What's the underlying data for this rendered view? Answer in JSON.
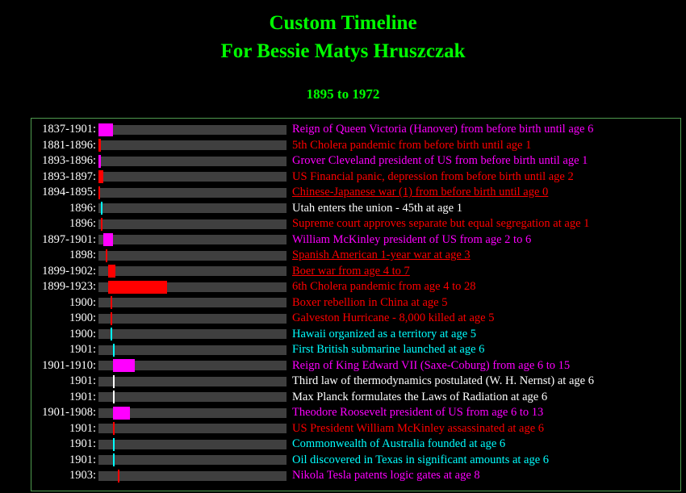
{
  "colors": {
    "background": "#000000",
    "title": "#00ff00",
    "year_label": "#ffffff",
    "track": "#3f3f3f",
    "table_border": "#4f9b4f",
    "magenta": "#ff00ff",
    "red": "#ff0000",
    "cyan": "#00ffff",
    "white": "#ffffff"
  },
  "header": {
    "title_line1": "Custom Timeline",
    "title_line2": "For Bessie Matys Hruszczak",
    "subtitle": "1895 to 1972"
  },
  "chart_data": {
    "type": "bar",
    "orientation": "horizontal-timeline",
    "title": "Custom Timeline For Bessie Matys Hruszczak",
    "subtitle": "1895 to 1972",
    "x_range": [
      1895,
      1972
    ],
    "grid": false,
    "legend": false,
    "rows": [
      {
        "label": "1837-1901:",
        "start_year": 1837,
        "end_year": 1901,
        "color": "#ff00ff",
        "description": "Reign of Queen Victoria (Hanover) from before birth until age 6",
        "underlined": false
      },
      {
        "label": "1881-1896:",
        "start_year": 1881,
        "end_year": 1896,
        "color": "#ff0000",
        "description": "5th Cholera pandemic from before birth until age 1",
        "underlined": false
      },
      {
        "label": "1893-1896:",
        "start_year": 1893,
        "end_year": 1896,
        "color": "#ff00ff",
        "description": "Grover Cleveland president of US from before birth until age 1",
        "underlined": false
      },
      {
        "label": "1893-1897:",
        "start_year": 1893,
        "end_year": 1897,
        "color": "#ff0000",
        "description": "US Financial panic, depression from before birth until age 2",
        "underlined": false
      },
      {
        "label": "1894-1895:",
        "start_year": 1894,
        "end_year": 1895,
        "color": "#ff0000",
        "description": "Chinese-Japanese war (1) from before birth until age 0",
        "underlined": true
      },
      {
        "label": "1896:",
        "start_year": 1896,
        "end_year": 1896,
        "color": "#00ffff",
        "text_color": "#ffffff",
        "description": "Utah enters the union - 45th at age 1",
        "underlined": false
      },
      {
        "label": "1896:",
        "start_year": 1896,
        "end_year": 1896,
        "color": "#ff0000",
        "description": "Supreme court approves separate but equal segregation at age 1",
        "underlined": false
      },
      {
        "label": "1897-1901:",
        "start_year": 1897,
        "end_year": 1901,
        "color": "#ff00ff",
        "description": "William McKinley president of US from age 2 to 6",
        "underlined": false
      },
      {
        "label": "1898:",
        "start_year": 1898,
        "end_year": 1898,
        "color": "#ff0000",
        "description": "Spanish American 1-year war at age 3",
        "underlined": true
      },
      {
        "label": "1899-1902:",
        "start_year": 1899,
        "end_year": 1902,
        "color": "#ff0000",
        "description": "Boer war from age 4 to 7",
        "underlined": true
      },
      {
        "label": "1899-1923:",
        "start_year": 1899,
        "end_year": 1923,
        "color": "#ff0000",
        "description": "6th Cholera pandemic from age 4 to 28",
        "underlined": false
      },
      {
        "label": "1900:",
        "start_year": 1900,
        "end_year": 1900,
        "color": "#ff0000",
        "description": "Boxer rebellion in China at age 5",
        "underlined": false
      },
      {
        "label": "1900:",
        "start_year": 1900,
        "end_year": 1900,
        "color": "#ff0000",
        "description": "Galveston Hurricane - 8,000 killed at age 5",
        "underlined": false
      },
      {
        "label": "1900:",
        "start_year": 1900,
        "end_year": 1900,
        "color": "#00ffff",
        "description": "Hawaii organized as a territory at age 5",
        "underlined": false
      },
      {
        "label": "1901:",
        "start_year": 1901,
        "end_year": 1901,
        "color": "#00ffff",
        "description": "First British submarine launched at age 6",
        "underlined": false
      },
      {
        "label": "1901-1910:",
        "start_year": 1901,
        "end_year": 1910,
        "color": "#ff00ff",
        "description": "Reign of King Edward VII (Saxe-Coburg) from age 6 to 15",
        "underlined": false
      },
      {
        "label": "1901:",
        "start_year": 1901,
        "end_year": 1901,
        "color": "#ffffff",
        "description": "Third law of thermodynamics postulated (W. H. Nernst) at age 6",
        "underlined": false
      },
      {
        "label": "1901:",
        "start_year": 1901,
        "end_year": 1901,
        "color": "#ffffff",
        "description": "Max Planck formulates the Laws of Radiation at age 6",
        "underlined": false
      },
      {
        "label": "1901-1908:",
        "start_year": 1901,
        "end_year": 1908,
        "color": "#ff00ff",
        "description": "Theodore Roosevelt president of US from age 6 to 13",
        "underlined": false
      },
      {
        "label": "1901:",
        "start_year": 1901,
        "end_year": 1901,
        "color": "#ff0000",
        "description": "US President William McKinley assassinated at age 6",
        "underlined": false
      },
      {
        "label": "1901:",
        "start_year": 1901,
        "end_year": 1901,
        "color": "#00ffff",
        "description": "Commonwealth of Australia founded at age 6",
        "underlined": false
      },
      {
        "label": "1901:",
        "start_year": 1901,
        "end_year": 1901,
        "color": "#00ffff",
        "description": "Oil discovered in Texas in significant amounts at age 6",
        "underlined": false
      },
      {
        "label": "1903:",
        "start_year": 1903,
        "end_year": 1903,
        "color": "#ff0000",
        "text_color": "#ff00ff",
        "description": "Nikola Tesla patents logic gates at age 8",
        "underlined": false
      }
    ]
  }
}
